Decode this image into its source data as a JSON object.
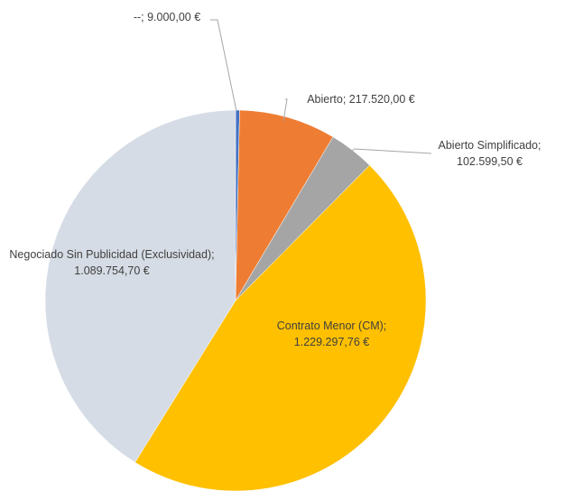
{
  "chart_data": {
    "type": "pie",
    "values": [
      9000,
      217520,
      102599.5,
      1229297.76,
      1089754.7
    ],
    "value_labels": [
      "--; 9.000,00 €",
      "Abierto; 217.520,00 €",
      "Abierto Simplificado; 102.599,50 €",
      "Contrato Menor (CM); 1.229.297,76 €",
      "Negociado Sin Publicidad (Exclusividad); 1.089.754,70 €"
    ],
    "colors": [
      "#4472c4",
      "#ee7d33",
      "#a5a5a5",
      "#ffc000",
      "#d6dce5"
    ]
  }
}
